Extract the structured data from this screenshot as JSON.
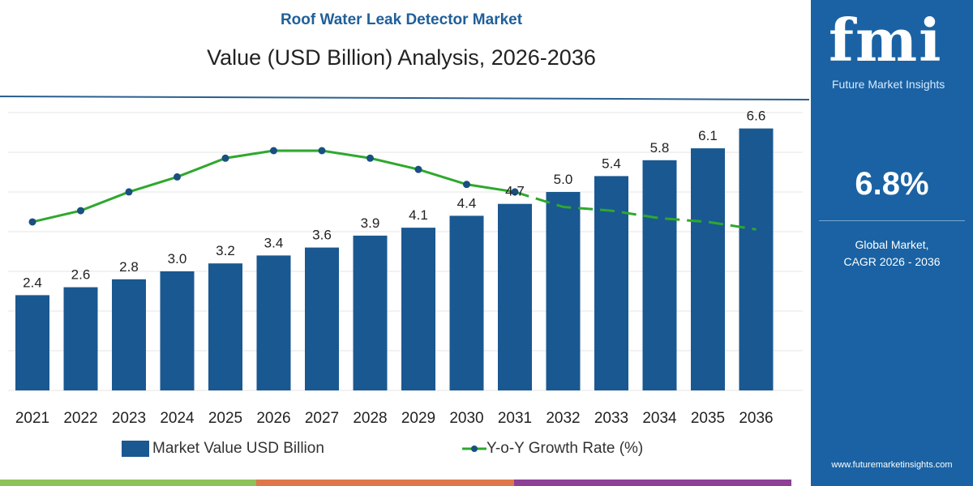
{
  "title": "Roof Water Leak Detector Market",
  "subtitle": "Value (USD Billion) Analysis, 2026-2036",
  "chart_data": {
    "type": "bar+line",
    "categories": [
      "2021",
      "2022",
      "2023",
      "2024",
      "2025",
      "2026",
      "2027",
      "2028",
      "2029",
      "2030",
      "2031",
      "2032",
      "2033",
      "2034",
      "2035",
      "2036"
    ],
    "series": [
      {
        "name": "Market Value USD Billion",
        "type": "bar",
        "color": "#1a5891",
        "values": [
          2.4,
          2.6,
          2.8,
          3.0,
          3.2,
          3.4,
          3.6,
          3.9,
          4.1,
          4.4,
          4.7,
          5.0,
          5.4,
          5.8,
          6.1,
          6.6
        ]
      },
      {
        "name": "Y-o-Y Growth Rate (%)",
        "type": "line",
        "color": "#2ea82e",
        "marker_color": "#1a4f80",
        "values_estimated": [
          6.3,
          6.6,
          7.1,
          7.5,
          8.0,
          8.2,
          8.2,
          8.0,
          7.7,
          7.3,
          7.1,
          6.7,
          6.6,
          6.4,
          6.3,
          6.1
        ],
        "dashed_from": "2031"
      }
    ],
    "ylim": [
      0,
      7
    ],
    "grid": true,
    "legend_position": "bottom"
  },
  "legend": {
    "bar": "Market Value USD Billion",
    "line": "Y-o-Y Growth Rate (%)"
  },
  "side_panel": {
    "logo_text": "fmi",
    "brand": "Future Market Insights",
    "cagr_value": "6.8%",
    "cagr_label_1": "Global Market,",
    "cagr_label_2": "CAGR 2026 - 2036",
    "url": "www.futuremarketinsights.com"
  },
  "colors": {
    "panel": "#1a62a3",
    "bar": "#1a5891",
    "line": "#2ea82e",
    "strip": [
      "#8fc15a",
      "#e0774a",
      "#8e3f96"
    ]
  }
}
